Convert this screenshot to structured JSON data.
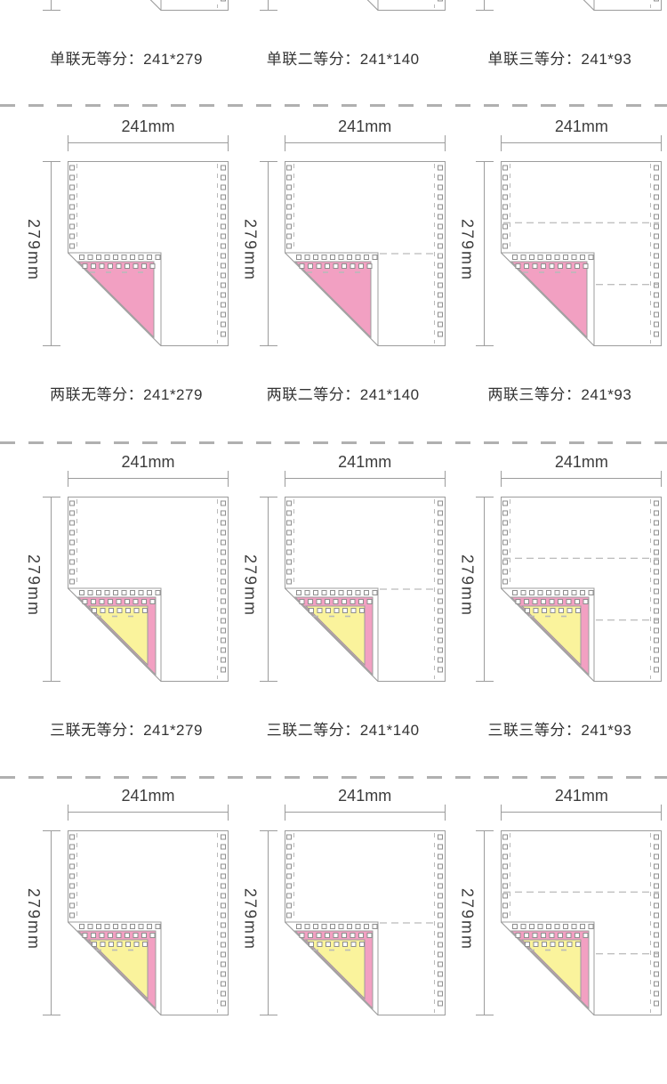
{
  "dimensions": {
    "width_label": "241mm",
    "height_label": "279mm"
  },
  "colors": {
    "paper": "#ffffff",
    "outline": "#9c9c9c",
    "hole_border": "#8e8e8e",
    "perforation": "#b9b9b9",
    "division_dash": "#a8a8a8",
    "separator_dash": "#b0b0b0",
    "pink_ply": "#F2A0C2",
    "yellow_ply": "#FAF39C",
    "dim_text": "#3c3c3c",
    "caption_text": "#333333"
  },
  "rows": [
    {
      "plies": 1,
      "cells": [
        {
          "divisions": 0,
          "caption": "单联无等分：241*279"
        },
        {
          "divisions": 1,
          "caption": "单联二等分：241*140"
        },
        {
          "divisions": 2,
          "caption": "单联三等分：241*93"
        }
      ]
    },
    {
      "plies": 2,
      "cells": [
        {
          "divisions": 0,
          "caption": "两联无等分：241*279"
        },
        {
          "divisions": 1,
          "caption": "两联二等分：241*140"
        },
        {
          "divisions": 2,
          "caption": "两联三等分：241*93"
        }
      ]
    },
    {
      "plies": 3,
      "cells": [
        {
          "divisions": 0,
          "caption": "三联无等分：241*279"
        },
        {
          "divisions": 1,
          "caption": "三联二等分：241*140"
        },
        {
          "divisions": 2,
          "caption": "三联三等分：241*93"
        }
      ]
    },
    {
      "plies": 4,
      "cells": [
        {
          "divisions": 0,
          "caption": ""
        },
        {
          "divisions": 1,
          "caption": ""
        },
        {
          "divisions": 2,
          "caption": ""
        }
      ]
    }
  ]
}
